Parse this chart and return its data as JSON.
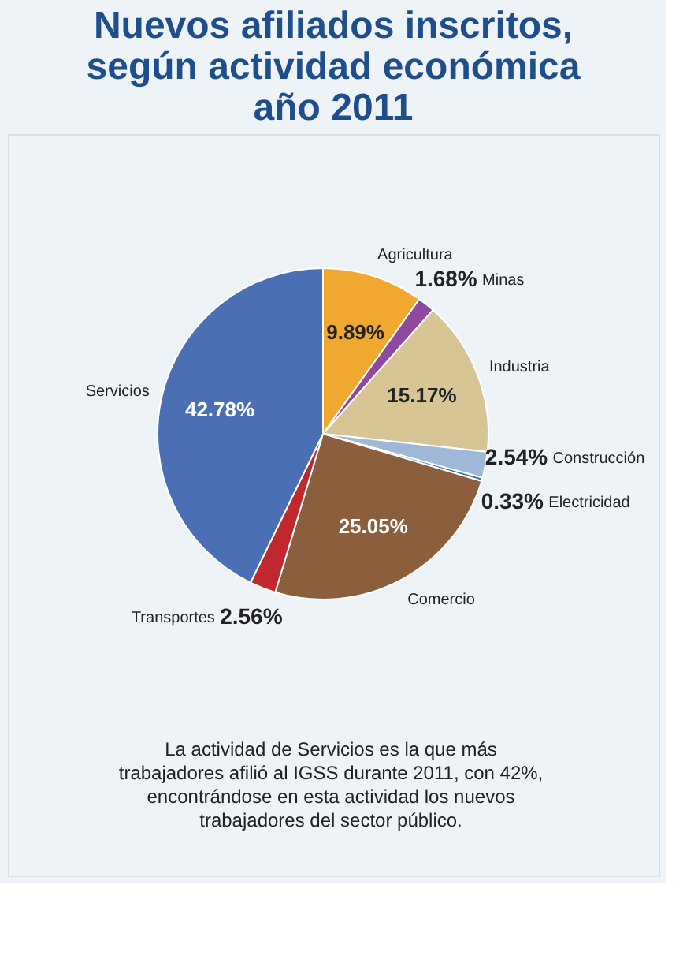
{
  "chart_data": {
    "type": "pie",
    "title": "Nuevos afiliados inscritos, según actividad económica año 2011",
    "categories": [
      "Agricultura",
      "Minas",
      "Industria",
      "Construcción",
      "Electricidad",
      "Comercio",
      "Transportes",
      "Servicios"
    ],
    "values": [
      9.89,
      1.68,
      15.17,
      2.54,
      0.33,
      25.05,
      2.56,
      42.78
    ],
    "value_labels": [
      "9.89%",
      "1.68%",
      "15.17%",
      "2.54%",
      "0.33%",
      "25.05%",
      "2.56%",
      "42.78%"
    ],
    "colors": [
      "#f0a830",
      "#8e4a9e",
      "#d8c596",
      "#9fb8d8",
      "#3f78b0",
      "#8b5e3c",
      "#c0282e",
      "#4a6fb5"
    ],
    "annotations": [
      "La actividad de Servicios es la que más trabajadores afilió al IGSS durante 2011, con 42%, encontrándose en esta actividad los nuevos trabajadores del sector público."
    ],
    "legend": false
  }
}
